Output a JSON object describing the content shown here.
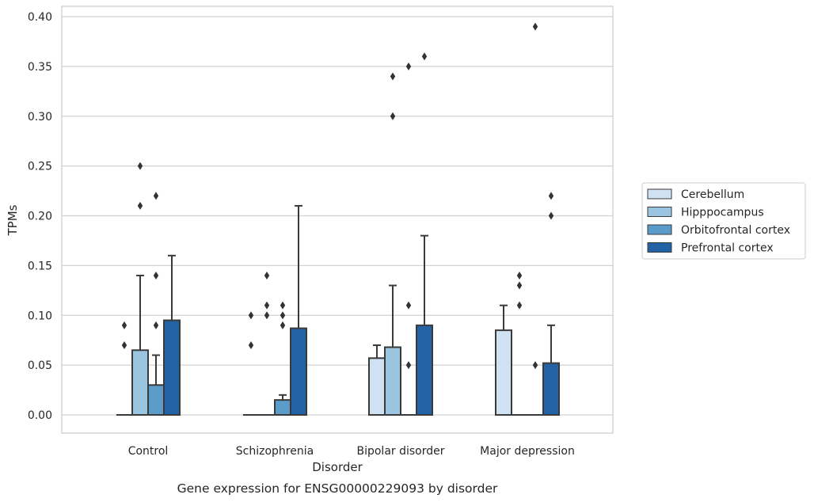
{
  "chart_data": {
    "type": "bar",
    "title": "",
    "caption": "Gene expression for ENSG00000229093 by disorder",
    "xlabel": "Disorder",
    "ylabel": "TPMs",
    "ylim": [
      -0.019,
      0.41
    ],
    "yticks": [
      "0.00",
      "0.05",
      "0.10",
      "0.15",
      "0.20",
      "0.25",
      "0.30",
      "0.35",
      "0.40"
    ],
    "categories": [
      "Control",
      "Schizophrenia",
      "Bipolar disorder",
      "Major depression"
    ],
    "grid": "horizontal",
    "legend_position": "right",
    "series": [
      {
        "name": "Cerebellum",
        "color": "#d0e1f2",
        "values": [
          0.0,
          0.0,
          0.057,
          0.085
        ],
        "error_upper": [
          null,
          null,
          0.07,
          0.11
        ],
        "outliers": [
          [
            0.07,
            0.09
          ],
          [
            0.07,
            0.1
          ],
          [],
          []
        ]
      },
      {
        "name": "Hipppocampus",
        "color": "#99c5e0",
        "values": [
          0.065,
          0.0,
          0.068,
          0.0
        ],
        "error_upper": [
          0.14,
          null,
          0.13,
          null
        ],
        "outliers": [
          [
            0.21,
            0.25
          ],
          [
            0.1,
            0.11,
            0.14
          ],
          [
            0.3,
            0.34
          ],
          [
            0.11,
            0.13,
            0.14
          ]
        ]
      },
      {
        "name": "Orbitofrontal cortex",
        "color": "#5a9bc9",
        "values": [
          0.03,
          0.015,
          0.0,
          0.0
        ],
        "error_upper": [
          0.06,
          0.02,
          null,
          null
        ],
        "outliers": [
          [
            0.09,
            0.14,
            0.22
          ],
          [
            0.09,
            0.1,
            0.11
          ],
          [
            0.05,
            0.11,
            0.35
          ],
          [
            0.05,
            0.39
          ]
        ]
      },
      {
        "name": "Prefrontal cortex",
        "color": "#2462a6",
        "values": [
          0.095,
          0.087,
          0.09,
          0.052
        ],
        "error_upper": [
          0.16,
          0.21,
          0.18,
          0.09
        ],
        "outliers": [
          [],
          [],
          [
            0.36
          ],
          [
            0.2,
            0.22
          ]
        ]
      }
    ]
  }
}
